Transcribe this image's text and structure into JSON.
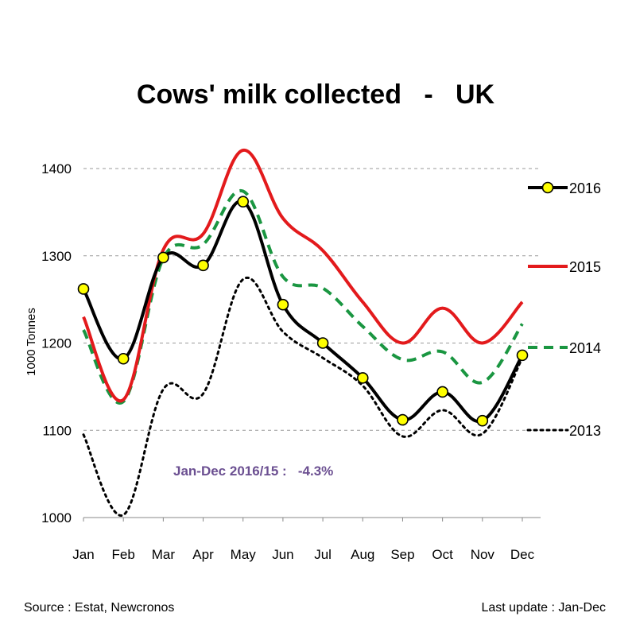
{
  "chart_data": {
    "type": "line",
    "title": "Cows' milk collected   -   UK",
    "ylabel": "1000 Tonnes",
    "xlabel": "",
    "categories": [
      "Jan",
      "Feb",
      "Mar",
      "Apr",
      "May",
      "Jun",
      "Jul",
      "Aug",
      "Sep",
      "Oct",
      "Nov",
      "Dec"
    ],
    "yticks": [
      "1000",
      "1100",
      "1200",
      "1300",
      "1400"
    ],
    "ylim": [
      1000,
      1400
    ],
    "grid": "horizontal dashed",
    "legend_position": "right",
    "series": [
      {
        "name": "2016",
        "values": [
          1262,
          1182,
          1298,
          1289,
          1362,
          1244,
          1200,
          1160,
          1112,
          1144,
          1111,
          1186
        ],
        "color": "#000000",
        "style": "solid-with-yellow-markers"
      },
      {
        "name": "2015",
        "values": [
          1230,
          1135,
          1307,
          1325,
          1421,
          1343,
          1306,
          1247,
          1200,
          1240,
          1200,
          1247
        ],
        "color": "#e31a1c",
        "style": "solid"
      },
      {
        "name": "2014",
        "values": [
          1215,
          1133,
          1297,
          1313,
          1374,
          1276,
          1263,
          1219,
          1181,
          1190,
          1155,
          1222
        ],
        "color": "#1a9641",
        "style": "dashed"
      },
      {
        "name": "2013",
        "values": [
          1095,
          1003,
          1147,
          1142,
          1273,
          1213,
          1183,
          1151,
          1093,
          1123,
          1096,
          1183
        ],
        "color": "#000000",
        "style": "dotted"
      }
    ],
    "annotation": "Jan-Dec 2016/15 :   -4.3%"
  },
  "footer": {
    "source": "Source : Estat, Newcronos",
    "last_update": "Last update : Jan-Dec"
  }
}
